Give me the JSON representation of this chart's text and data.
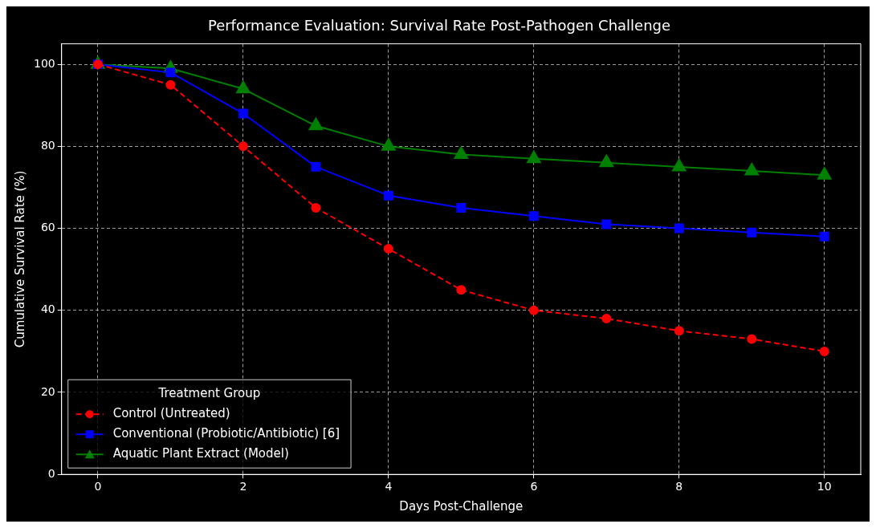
{
  "chart_data": {
    "type": "line",
    "title": "Performance Evaluation: Survival Rate Post-Pathogen Challenge",
    "xlabel": "Days Post-Challenge",
    "ylabel": "Cumulative Survival Rate (%)",
    "legend_title": "Treatment Group",
    "x": [
      0,
      1,
      2,
      3,
      4,
      5,
      6,
      7,
      8,
      9,
      10
    ],
    "series": [
      {
        "name": "Control (Untreated)",
        "color": "#ff0000",
        "values": [
          100,
          95,
          80,
          65,
          55,
          45,
          40,
          38,
          35,
          33,
          30
        ],
        "marker": "circle",
        "line_style": "dashed"
      },
      {
        "name": "Conventional (Probiotic/Antibiotic) [6]",
        "color": "#0000ff",
        "values": [
          100,
          98,
          88,
          75,
          68,
          65,
          63,
          61,
          60,
          59,
          58
        ],
        "marker": "square",
        "line_style": "solid"
      },
      {
        "name": "Aquatic Plant Extract (Model)",
        "color": "#008000",
        "values": [
          100,
          99,
          94,
          85,
          80,
          78,
          77,
          76,
          75,
          74,
          73
        ],
        "marker": "triangle",
        "line_style": "solid"
      }
    ],
    "xlim": [
      -0.5,
      10.5
    ],
    "xticks": [
      0,
      2,
      4,
      6,
      8,
      10
    ],
    "ylim": [
      0,
      105
    ],
    "yticks": [
      0,
      20,
      40,
      60,
      80,
      100
    ],
    "grid": true,
    "legend": "bottom left"
  }
}
